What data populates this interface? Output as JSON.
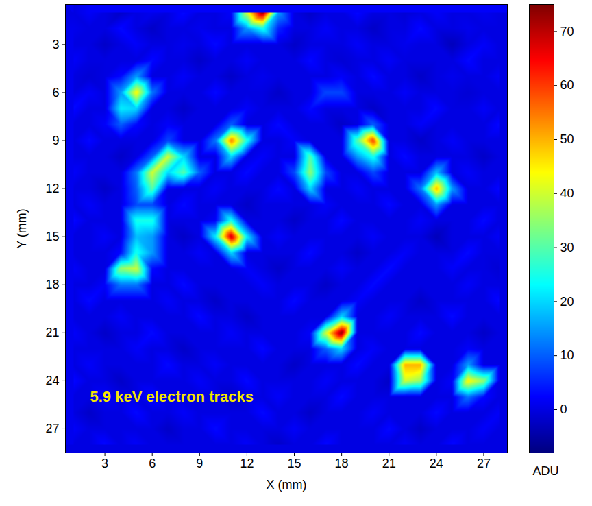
{
  "chart_data": {
    "type": "heatmap",
    "annotation": "5.9 keV electron tracks",
    "x_label": "X (mm)",
    "y_label": "Y (mm)",
    "x": [
      1,
      2,
      3,
      4,
      5,
      6,
      7,
      8,
      9,
      10,
      11,
      12,
      13,
      14,
      15,
      16,
      17,
      18,
      19,
      20,
      21,
      22,
      23,
      24,
      25,
      26,
      27,
      28
    ],
    "y": [
      1,
      2,
      3,
      4,
      5,
      6,
      7,
      8,
      9,
      10,
      11,
      12,
      13,
      14,
      15,
      16,
      17,
      18,
      19,
      20,
      21,
      22,
      23,
      24,
      25,
      26,
      27,
      28
    ],
    "xlim": [
      0.5,
      28.5
    ],
    "ylim": [
      28.5,
      0.5
    ],
    "xticks": [
      3,
      6,
      9,
      12,
      15,
      18,
      21,
      24,
      27
    ],
    "yticks": [
      3,
      6,
      9,
      12,
      15,
      18,
      21,
      24,
      27
    ],
    "cells": [
      [
        0,
        2,
        0,
        -2,
        0,
        1,
        0,
        3,
        0,
        0,
        2,
        40,
        75,
        15,
        0,
        -2,
        0,
        0,
        3,
        0,
        0,
        -1,
        0,
        2,
        0,
        0,
        1,
        0
      ],
      [
        1,
        0,
        0,
        3,
        0,
        -2,
        0,
        0,
        1,
        0,
        0,
        15,
        25,
        5,
        0,
        0,
        2,
        0,
        0,
        -2,
        0,
        0,
        3,
        0,
        0,
        1,
        0,
        0
      ],
      [
        0,
        0,
        -2,
        0,
        2,
        0,
        0,
        1,
        0,
        3,
        0,
        0,
        0,
        0,
        -2,
        0,
        0,
        0,
        2,
        0,
        0,
        1,
        0,
        0,
        -3,
        0,
        2,
        0
      ],
      [
        2,
        0,
        0,
        0,
        0,
        3,
        0,
        0,
        -2,
        0,
        0,
        2,
        0,
        0,
        0,
        3,
        0,
        -1,
        0,
        0,
        2,
        0,
        0,
        0,
        0,
        3,
        0,
        0
      ],
      [
        0,
        -1,
        0,
        3,
        15,
        0,
        0,
        2,
        0,
        0,
        -2,
        0,
        1,
        0,
        0,
        0,
        0,
        2,
        0,
        3,
        0,
        0,
        -2,
        0,
        1,
        0,
        0,
        2
      ],
      [
        0,
        2,
        0,
        15,
        45,
        12,
        0,
        0,
        0,
        3,
        0,
        0,
        0,
        -2,
        0,
        0,
        8,
        8,
        0,
        0,
        0,
        2,
        0,
        0,
        0,
        -1,
        0,
        0
      ],
      [
        3,
        0,
        0,
        22,
        20,
        0,
        0,
        -2,
        0,
        0,
        0,
        2,
        0,
        0,
        0,
        3,
        0,
        0,
        0,
        -2,
        0,
        0,
        0,
        3,
        0,
        0,
        2,
        0
      ],
      [
        0,
        0,
        2,
        10,
        3,
        0,
        2,
        0,
        0,
        0,
        10,
        0,
        0,
        3,
        0,
        0,
        0,
        -2,
        0,
        10,
        0,
        0,
        2,
        0,
        0,
        0,
        0,
        3
      ],
      [
        0,
        3,
        0,
        0,
        0,
        0,
        8,
        0,
        0,
        12,
        55,
        25,
        0,
        0,
        2,
        0,
        0,
        0,
        30,
        60,
        0,
        0,
        -2,
        0,
        2,
        0,
        0,
        0
      ],
      [
        0,
        0,
        0,
        -2,
        0,
        10,
        40,
        20,
        0,
        0,
        20,
        0,
        2,
        0,
        0,
        30,
        0,
        0,
        15,
        25,
        0,
        3,
        0,
        0,
        0,
        0,
        -2,
        0
      ],
      [
        2,
        0,
        0,
        0,
        12,
        40,
        20,
        30,
        10,
        0,
        0,
        3,
        0,
        0,
        8,
        35,
        8,
        0,
        0,
        8,
        0,
        0,
        0,
        18,
        0,
        2,
        0,
        0
      ],
      [
        0,
        0,
        -2,
        0,
        10,
        30,
        0,
        0,
        0,
        2,
        0,
        0,
        0,
        3,
        0,
        20,
        0,
        0,
        2,
        0,
        0,
        0,
        12,
        50,
        15,
        0,
        0,
        3
      ],
      [
        0,
        2,
        0,
        0,
        8,
        8,
        0,
        3,
        0,
        0,
        0,
        -2,
        0,
        0,
        0,
        0,
        2,
        0,
        0,
        0,
        3,
        0,
        0,
        15,
        0,
        0,
        0,
        0
      ],
      [
        3,
        0,
        0,
        0,
        25,
        25,
        0,
        0,
        0,
        2,
        25,
        0,
        0,
        0,
        -2,
        0,
        0,
        3,
        0,
        0,
        0,
        0,
        2,
        0,
        0,
        0,
        3,
        0
      ],
      [
        0,
        0,
        2,
        0,
        18,
        15,
        0,
        -2,
        0,
        22,
        70,
        22,
        0,
        2,
        0,
        0,
        0,
        0,
        0,
        2,
        0,
        0,
        0,
        -3,
        0,
        0,
        0,
        2
      ],
      [
        0,
        0,
        0,
        3,
        25,
        15,
        0,
        0,
        2,
        0,
        20,
        0,
        0,
        0,
        0,
        3,
        0,
        0,
        -2,
        0,
        0,
        2,
        0,
        0,
        0,
        3,
        0,
        0
      ],
      [
        2,
        0,
        0,
        35,
        40,
        3,
        0,
        0,
        0,
        0,
        0,
        2,
        0,
        -2,
        0,
        0,
        0,
        2,
        0,
        0,
        3,
        0,
        0,
        0,
        2,
        0,
        0,
        -1
      ],
      [
        0,
        0,
        2,
        12,
        12,
        0,
        0,
        3,
        0,
        0,
        0,
        0,
        2,
        0,
        0,
        0,
        -2,
        0,
        0,
        3,
        0,
        0,
        0,
        0,
        0,
        2,
        0,
        0
      ],
      [
        0,
        3,
        0,
        0,
        0,
        0,
        2,
        0,
        0,
        -2,
        0,
        0,
        0,
        0,
        3,
        0,
        0,
        0,
        2,
        0,
        0,
        0,
        -2,
        0,
        0,
        0,
        0,
        3
      ],
      [
        0,
        0,
        0,
        2,
        0,
        0,
        0,
        0,
        3,
        0,
        0,
        -2,
        0,
        0,
        0,
        0,
        0,
        20,
        0,
        0,
        2,
        0,
        0,
        0,
        3,
        0,
        0,
        0
      ],
      [
        2,
        0,
        -2,
        0,
        0,
        3,
        0,
        0,
        0,
        0,
        2,
        0,
        0,
        0,
        0,
        2,
        40,
        75,
        0,
        0,
        0,
        0,
        3,
        0,
        0,
        0,
        -2,
        0
      ],
      [
        0,
        0,
        0,
        0,
        2,
        0,
        0,
        -2,
        0,
        0,
        0,
        0,
        3,
        0,
        0,
        0,
        10,
        20,
        0,
        2,
        0,
        0,
        0,
        0,
        0,
        2,
        0,
        0
      ],
      [
        0,
        2,
        0,
        0,
        0,
        0,
        3,
        0,
        0,
        2,
        0,
        0,
        0,
        0,
        -2,
        0,
        0,
        0,
        3,
        0,
        0,
        50,
        50,
        0,
        0,
        15,
        0,
        0
      ],
      [
        3,
        0,
        0,
        -2,
        0,
        0,
        0,
        0,
        2,
        0,
        0,
        3,
        0,
        0,
        0,
        0,
        2,
        0,
        0,
        0,
        -2,
        40,
        35,
        0,
        2,
        45,
        35,
        0
      ],
      [
        0,
        0,
        2,
        0,
        0,
        3,
        0,
        0,
        0,
        0,
        -2,
        0,
        0,
        2,
        0,
        0,
        0,
        3,
        0,
        0,
        0,
        0,
        0,
        0,
        0,
        12,
        3,
        0
      ],
      [
        0,
        -2,
        0,
        0,
        3,
        0,
        0,
        2,
        0,
        0,
        0,
        0,
        3,
        0,
        0,
        -2,
        0,
        0,
        0,
        2,
        0,
        0,
        0,
        3,
        0,
        0,
        0,
        2
      ],
      [
        2,
        0,
        0,
        0,
        0,
        0,
        -2,
        0,
        0,
        3,
        0,
        0,
        0,
        0,
        2,
        0,
        0,
        0,
        0,
        0,
        3,
        0,
        -2,
        0,
        0,
        0,
        2,
        0
      ],
      [
        0,
        0,
        3,
        0,
        2,
        0,
        0,
        0,
        0,
        0,
        0,
        2,
        0,
        -2,
        0,
        0,
        3,
        0,
        0,
        0,
        0,
        2,
        0,
        0,
        3,
        0,
        0,
        0
      ]
    ],
    "colorbar": {
      "label": "ADU",
      "range": [
        -8,
        75
      ],
      "ticks": [
        0,
        10,
        20,
        30,
        40,
        50,
        60,
        70
      ]
    }
  }
}
